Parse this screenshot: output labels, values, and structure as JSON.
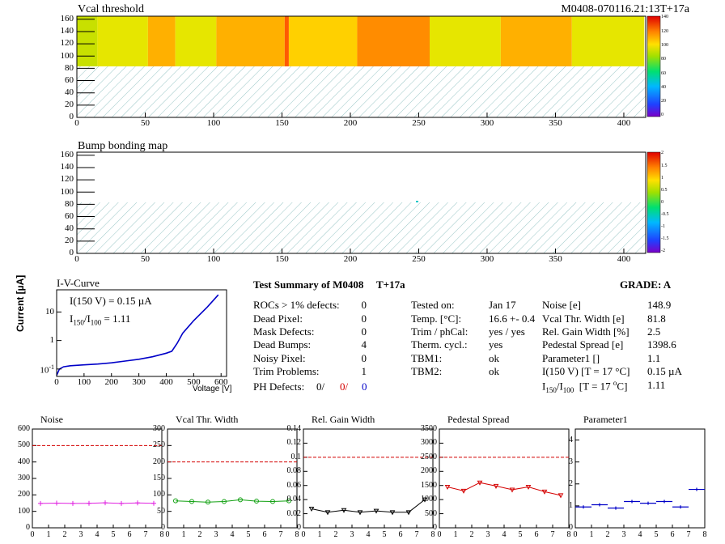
{
  "maps": {
    "vcal": {
      "title": "Vcal threshold",
      "label": "M0408-070116.21:13T+17a",
      "scale_ticks": [
        "140",
        "120",
        "100",
        "80",
        "60",
        "40",
        "20",
        "0"
      ],
      "columns": [
        {
          "from": 0,
          "to": 15,
          "level": 85
        },
        {
          "from": 15,
          "to": 52,
          "level": 92
        },
        {
          "from": 52,
          "to": 72,
          "level": 100
        },
        {
          "from": 72,
          "to": 102,
          "level": 88
        },
        {
          "from": 102,
          "to": 152,
          "level": 104
        },
        {
          "from": 152,
          "to": 155,
          "level": 120
        },
        {
          "from": 155,
          "to": 205,
          "level": 98
        },
        {
          "from": 205,
          "to": 258,
          "level": 110
        },
        {
          "from": 258,
          "to": 310,
          "level": 88
        },
        {
          "from": 310,
          "to": 362,
          "level": 100
        },
        {
          "from": 362,
          "to": 415,
          "level": 92
        }
      ]
    },
    "bump": {
      "title": "Bump bonding map",
      "scale_ticks": [
        "2",
        "1.5",
        "1",
        "0.5",
        "0",
        "-0.5",
        "-1",
        "-1.5",
        "-2"
      ]
    },
    "x_ticks": [
      "0",
      "50",
      "100",
      "150",
      "200",
      "250",
      "300",
      "350",
      "400"
    ],
    "y_ticks": [
      "0",
      "20",
      "40",
      "60",
      "80",
      "100",
      "120",
      "140",
      "160"
    ]
  },
  "ivcurve": {
    "title": "I-V-Curve",
    "ylabel": "Current [µA]",
    "xlabel": "Voltage [V]",
    "current_label": "I(150 V) = 0.15 µA",
    "ratio_label": "I",
    "ratio_sub1": "150",
    "ratio_sep": "/I",
    "ratio_sub2": "100",
    "ratio_value": "=  1.11",
    "x_ticks": [
      "0",
      "100",
      "200",
      "300",
      "400",
      "500",
      "600"
    ],
    "y_ticks": [
      "10",
      "1",
      "10"
    ],
    "y_tick_exp": "-1",
    "chart_data": {
      "type": "line",
      "x": [
        0,
        10,
        25,
        50,
        100,
        150,
        200,
        250,
        300,
        350,
        400,
        420,
        440,
        460,
        480,
        500,
        550,
        590
      ],
      "y": [
        0.06,
        0.1,
        0.12,
        0.13,
        0.14,
        0.15,
        0.165,
        0.19,
        0.22,
        0.27,
        0.36,
        0.42,
        0.8,
        1.8,
        3.0,
        5.0,
        15,
        40
      ],
      "xlim": [
        0,
        620
      ],
      "ylog": true
    }
  },
  "summary": {
    "heading": "Test Summary of M0408",
    "tag": "T+17a",
    "grade_label": "GRADE:  A",
    "left": [
      {
        "label": "ROCs > 1% defects:",
        "value": "0"
      },
      {
        "label": "Dead Pixel:",
        "value": "0"
      },
      {
        "label": "Mask Defects:",
        "value": "0"
      },
      {
        "label": "Dead Bumps:",
        "value": "4"
      },
      {
        "label": "Noisy Pixel:",
        "value": "0"
      },
      {
        "label": "Trim Problems:",
        "value": "1"
      }
    ],
    "ph_label": "PH Defects:",
    "ph_values": [
      "0/",
      "0/",
      "0"
    ],
    "middle": [
      {
        "label": "Tested on:",
        "value": "Jan 17"
      },
      {
        "label": "Temp. [°C]:",
        "value": "16.6 +- 0.4"
      },
      {
        "label": "Trim / phCal:",
        "value": "yes / yes"
      },
      {
        "label": "Therm. cycl.:",
        "value": "yes"
      },
      {
        "label": "TBM1:",
        "value": "ok"
      },
      {
        "label": "TBM2:",
        "value": "ok"
      }
    ],
    "right": [
      {
        "label": "Noise [e]",
        "value": "148.9"
      },
      {
        "label": "Vcal Thr. Width [e]",
        "value": "81.8"
      },
      {
        "label": "Rel. Gain Width [%]",
        "value": "2.5"
      },
      {
        "label": "Pedestal Spread [e]",
        "value": "1398.6"
      },
      {
        "label": "Parameter1 []",
        "value": "1.1"
      },
      {
        "label": "I(150 V) [T = 17 °C]",
        "value": "0.15 µA"
      }
    ],
    "ratio_row": {
      "label": "I150/I100  [T = 17 °C]",
      "value": "1.11"
    }
  },
  "chart_data": [
    {
      "type": "line",
      "title": "Noise",
      "categories": [
        "0",
        "1",
        "2",
        "3",
        "4",
        "5",
        "6",
        "7",
        "8"
      ],
      "x": [
        0.5,
        1.5,
        2.5,
        3.5,
        4.5,
        5.5,
        6.5,
        7.5
      ],
      "values": [
        148,
        150,
        148,
        149,
        152,
        148,
        151,
        149
      ],
      "ylim": [
        0,
        600
      ],
      "yticks": [
        0,
        100,
        200,
        300,
        400,
        500,
        600
      ],
      "ylabels": [
        "0",
        "100",
        "200",
        "300",
        "400",
        "500",
        "600"
      ],
      "limit": 500,
      "color": "#e020e0",
      "marker": "plus"
    },
    {
      "type": "line",
      "title": "Vcal Thr. Width",
      "categories": [
        "0",
        "1",
        "2",
        "3",
        "4",
        "5",
        "6",
        "7",
        "8"
      ],
      "x": [
        0.5,
        1.5,
        2.5,
        3.5,
        4.5,
        5.5,
        6.5,
        7.5
      ],
      "values": [
        82,
        80,
        78,
        80,
        85,
        81,
        80,
        82
      ],
      "ylim": [
        0,
        300
      ],
      "yticks": [
        0,
        50,
        100,
        150,
        200,
        250,
        300
      ],
      "ylabels": [
        "0",
        "50",
        "100",
        "150",
        "200",
        "250",
        "300"
      ],
      "limit": 200,
      "color": "#10a010",
      "marker": "circle"
    },
    {
      "type": "line",
      "title": "Rel. Gain Width",
      "categories": [
        "0",
        "1",
        "2",
        "3",
        "4",
        "5",
        "6",
        "7",
        "8"
      ],
      "x": [
        0.5,
        1.5,
        2.5,
        3.5,
        4.5,
        5.5,
        6.5,
        7.5
      ],
      "values": [
        0.027,
        0.022,
        0.025,
        0.022,
        0.024,
        0.022,
        0.022,
        0.04
      ],
      "ylim": [
        0,
        0.14
      ],
      "yticks": [
        0,
        0.02,
        0.04,
        0.06,
        0.08,
        0.1,
        0.12,
        0.14
      ],
      "ylabels": [
        "0",
        "0.02",
        "0.04",
        "0.06",
        "0.08",
        "0.1",
        "0.12",
        "0.14"
      ],
      "limit": 0.1,
      "color": "#000000",
      "marker": "triangle"
    },
    {
      "type": "line",
      "title": "Pedestal Spread",
      "categories": [
        "0",
        "1",
        "2",
        "3",
        "4",
        "5",
        "6",
        "7",
        "8"
      ],
      "x": [
        0.5,
        1.5,
        2.5,
        3.5,
        4.5,
        5.5,
        6.5,
        7.5
      ],
      "values": [
        1450,
        1310,
        1600,
        1480,
        1350,
        1450,
        1280,
        1150
      ],
      "ylim": [
        0,
        3500
      ],
      "yticks": [
        0,
        500,
        1000,
        1500,
        2000,
        2500,
        3000,
        3500
      ],
      "ylabels": [
        "0",
        "500",
        "1000",
        "1500",
        "2000",
        "2500",
        "3000",
        "3500"
      ],
      "limit": 2500,
      "color": "#d40000",
      "marker": "triangle"
    },
    {
      "type": "scatter",
      "title": "Parameter1",
      "categories": [
        "0",
        "1",
        "2",
        "3",
        "4",
        "5",
        "6",
        "7",
        "8"
      ],
      "x": [
        0.5,
        1.5,
        2.5,
        3.5,
        4.5,
        5.5,
        6.5,
        7.5
      ],
      "values": [
        0.95,
        1.05,
        0.9,
        1.2,
        1.12,
        1.2,
        0.95,
        1.75
      ],
      "ylim": [
        0,
        4.5
      ],
      "yticks": [
        0,
        1,
        2,
        3,
        4
      ],
      "ylabels": [
        "0",
        "1",
        "2",
        "3",
        "4"
      ],
      "limit": null,
      "color": "#0000c8",
      "marker": "errbar"
    }
  ],
  "colors": {
    "accent": "#0000c8",
    "limit_line": "#d40000"
  }
}
